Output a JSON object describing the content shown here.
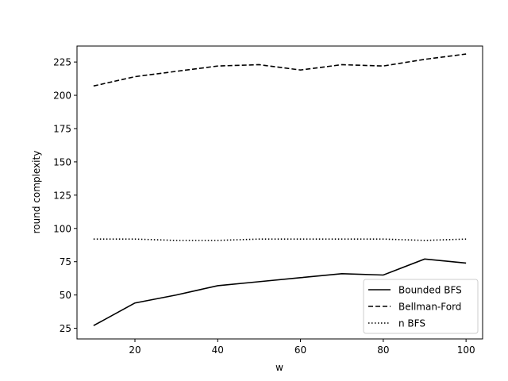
{
  "chart_data": {
    "type": "line",
    "title": "",
    "xlabel": "w",
    "ylabel": "round complexity",
    "xlim": [
      6,
      104
    ],
    "ylim": [
      17,
      237
    ],
    "xticks": [
      20,
      40,
      60,
      80,
      100
    ],
    "yticks": [
      25,
      50,
      75,
      100,
      125,
      150,
      175,
      200,
      225
    ],
    "grid": false,
    "legend_position": "bottom-right",
    "x": [
      10,
      20,
      30,
      40,
      50,
      60,
      70,
      80,
      90,
      100
    ],
    "series": [
      {
        "name": "Bounded BFS",
        "style": "solid",
        "color": "#000000",
        "values": [
          27,
          44,
          50,
          57,
          60,
          63,
          66,
          65,
          77,
          74
        ]
      },
      {
        "name": "Bellman-Ford",
        "style": "dashed",
        "color": "#000000",
        "values": [
          207,
          214,
          218,
          222,
          223,
          219,
          223,
          222,
          227,
          231
        ]
      },
      {
        "name": "n BFS",
        "style": "dotted",
        "color": "#000000",
        "values": [
          92,
          92,
          91,
          91,
          92,
          92,
          92,
          92,
          91,
          92
        ]
      }
    ]
  }
}
